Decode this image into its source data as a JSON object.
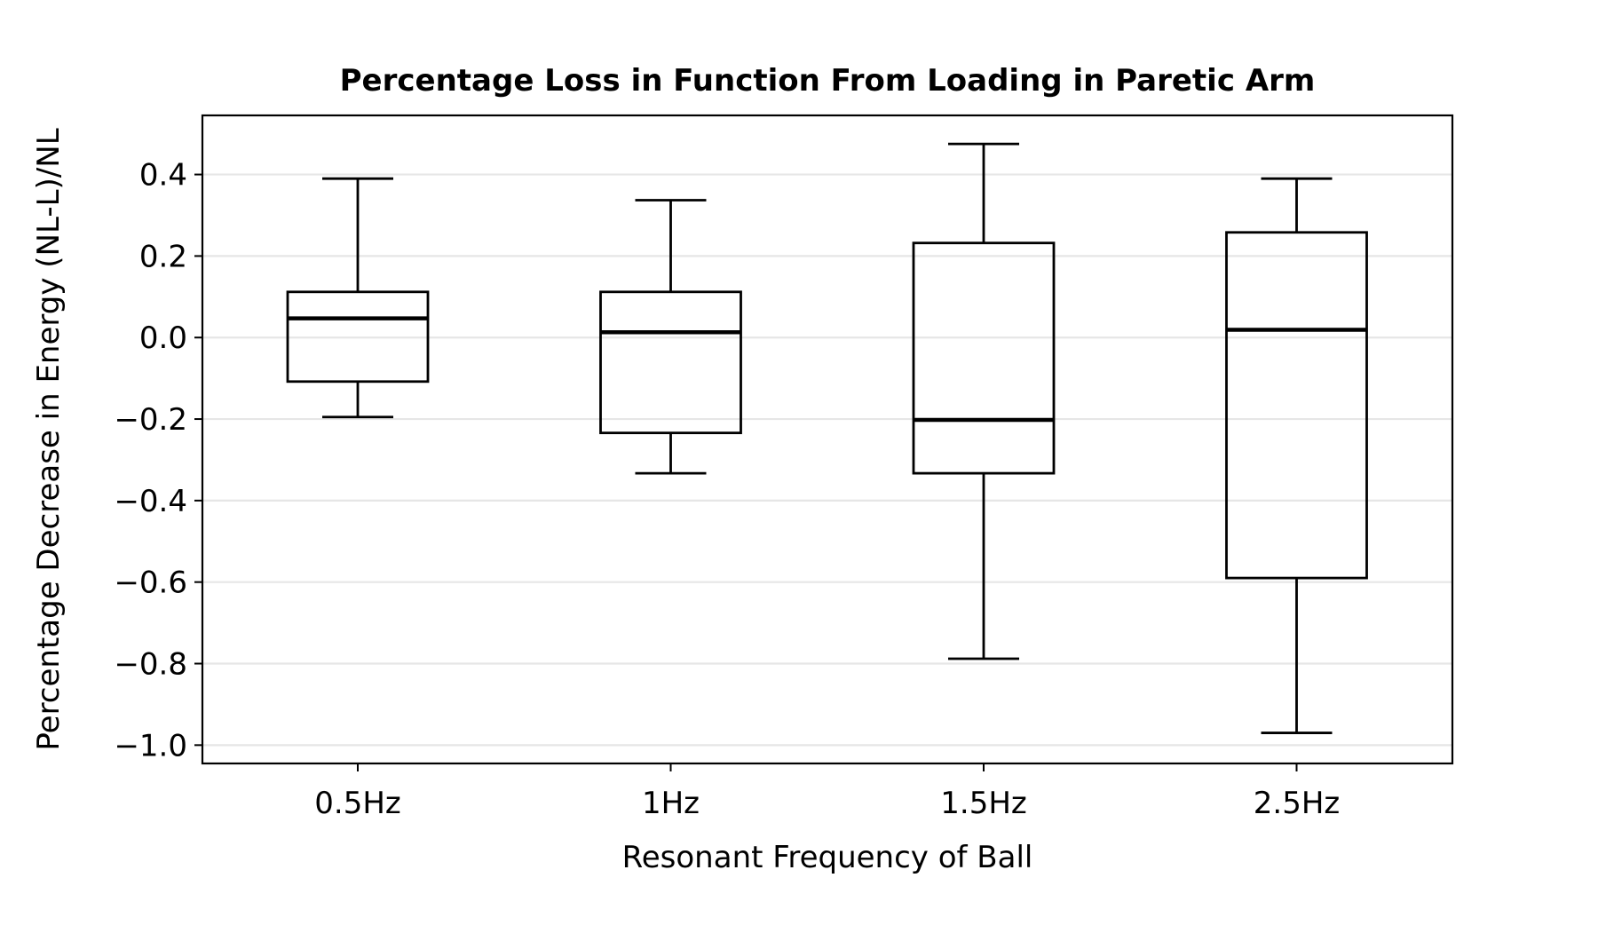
{
  "chart_data": {
    "type": "boxplot",
    "title": "Percentage Loss in Function From Loading in Paretic Arm",
    "xlabel": "Resonant Frequency of Ball",
    "ylabel": "Percentage Decrease in Energy (NL-L)/NL",
    "categories": [
      "0.5Hz",
      "1Hz",
      "1.5Hz",
      "2.5Hz"
    ],
    "boxes": [
      {
        "label": "0.5Hz",
        "whisker_low": -0.195,
        "q1": -0.108,
        "median": 0.047,
        "q3": 0.112,
        "whisker_high": 0.39
      },
      {
        "label": "1Hz",
        "whisker_low": -0.333,
        "q1": -0.234,
        "median": 0.013,
        "q3": 0.112,
        "whisker_high": 0.337
      },
      {
        "label": "1.5Hz",
        "whisker_low": -0.788,
        "q1": -0.333,
        "median": -0.202,
        "q3": 0.232,
        "whisker_high": 0.475
      },
      {
        "label": "2.5Hz",
        "whisker_low": -0.97,
        "q1": -0.59,
        "median": 0.019,
        "q3": 0.258,
        "whisker_high": 0.39
      }
    ],
    "yticks": [
      0.4,
      0.2,
      0.0,
      -0.2,
      -0.4,
      -0.6,
      -0.8,
      -1.0
    ],
    "ytick_labels": [
      "0.4",
      "0.2",
      "0.0",
      "−0.2",
      "−0.4",
      "−0.6",
      "−0.8",
      "−1.0"
    ],
    "ylim": [
      -1.045,
      0.545
    ],
    "grid": {
      "y": true,
      "x": false
    },
    "colors": {
      "box": "#000000",
      "grid": "#e6e6e6",
      "background": "#ffffff"
    }
  }
}
